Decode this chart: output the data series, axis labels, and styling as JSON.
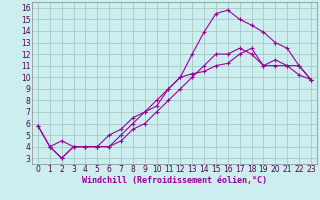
{
  "xlabel": "Windchill (Refroidissement éolien,°C)",
  "bg_color": "#cceeee",
  "grid_color": "#aacccc",
  "line_color": "#990099",
  "xlim": [
    -0.5,
    23.5
  ],
  "ylim": [
    2.5,
    16.5
  ],
  "xticks": [
    0,
    1,
    2,
    3,
    4,
    5,
    6,
    7,
    8,
    9,
    10,
    11,
    12,
    13,
    14,
    15,
    16,
    17,
    18,
    19,
    20,
    21,
    22,
    23
  ],
  "yticks": [
    3,
    4,
    5,
    6,
    7,
    8,
    9,
    10,
    11,
    12,
    13,
    14,
    15,
    16
  ],
  "line1_x": [
    1,
    2,
    3,
    4,
    5,
    6,
    7,
    8,
    9,
    10,
    11,
    12,
    13,
    14,
    15,
    16,
    17,
    18,
    19,
    20,
    21,
    22,
    23
  ],
  "line1_y": [
    4,
    3,
    4,
    4,
    4,
    4,
    5,
    6,
    7,
    8,
    9,
    10,
    12,
    13.9,
    15.5,
    15.8,
    15,
    14.5,
    13.9,
    13,
    12.5,
    11,
    9.8
  ],
  "line2_x": [
    0,
    1,
    2,
    3,
    4,
    5,
    6,
    7,
    8,
    9,
    10,
    11,
    12,
    13,
    14,
    15,
    16,
    17,
    18,
    19,
    20,
    21,
    22,
    23
  ],
  "line2_y": [
    5.8,
    4,
    4.5,
    4,
    4,
    4,
    5,
    5.5,
    6.5,
    7,
    7.5,
    9,
    10,
    10.3,
    10.5,
    11,
    11.2,
    12,
    12.5,
    11,
    11,
    11,
    10.2,
    9.8
  ],
  "line3_x": [
    0,
    1,
    2,
    3,
    4,
    5,
    6,
    7,
    8,
    9,
    10,
    11,
    12,
    13,
    14,
    15,
    16,
    17,
    18,
    19,
    20,
    21,
    22,
    23
  ],
  "line3_y": [
    5.8,
    4,
    3,
    4,
    4,
    4,
    4,
    4.5,
    5.5,
    6,
    7,
    8,
    9,
    10,
    11,
    12,
    12,
    12.5,
    12,
    11,
    11.5,
    11,
    11,
    9.8
  ],
  "tick_fontsize": 5.5,
  "xlabel_fontsize": 6.0
}
